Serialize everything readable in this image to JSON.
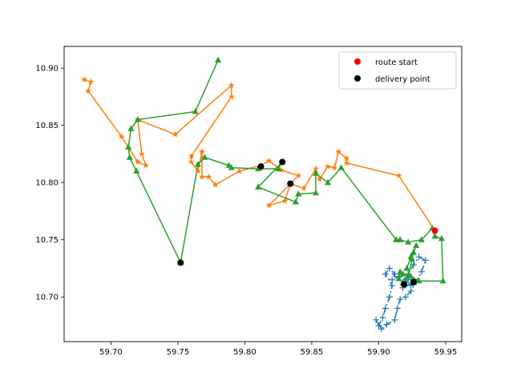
{
  "chart_data": {
    "type": "scatter",
    "title": "",
    "xlabel": "",
    "ylabel": "",
    "xlim": [
      59.665,
      59.962
    ],
    "ylim": [
      10.661,
      10.919
    ],
    "xticks": [
      59.7,
      59.75,
      59.8,
      59.85,
      59.9,
      59.95
    ],
    "yticks": [
      10.7,
      10.75,
      10.8,
      10.85,
      10.9
    ],
    "grid": false,
    "legend": {
      "placement": "top-right",
      "entries": [
        {
          "label": "route start",
          "color": "#ff0000",
          "marker": "circle"
        },
        {
          "label": "delivery point",
          "color": "#000000",
          "marker": "circle"
        }
      ]
    },
    "series": [
      {
        "color": "#1f77b4",
        "marker": "plus",
        "linestyle": "dashdot",
        "points": [
          [
            59.925,
            10.712
          ],
          [
            59.918,
            10.708
          ],
          [
            59.922,
            10.715
          ],
          [
            59.915,
            10.718
          ],
          [
            59.91,
            10.715
          ],
          [
            59.912,
            10.72
          ],
          [
            59.908,
            10.725
          ],
          [
            59.905,
            10.72
          ],
          [
            59.91,
            10.71
          ],
          [
            59.908,
            10.7
          ],
          [
            59.905,
            10.69
          ],
          [
            59.903,
            10.682
          ],
          [
            59.9,
            10.675
          ],
          [
            59.898,
            10.68
          ],
          [
            59.902,
            10.672
          ],
          [
            59.906,
            10.676
          ],
          [
            59.912,
            10.68
          ],
          [
            59.914,
            10.69
          ],
          [
            59.916,
            10.698
          ],
          [
            59.92,
            10.7
          ],
          [
            59.924,
            10.705
          ],
          [
            59.928,
            10.713
          ],
          [
            59.932,
            10.722
          ],
          [
            59.935,
            10.732
          ],
          [
            59.93,
            10.735
          ],
          [
            59.926,
            10.728
          ],
          [
            59.922,
            10.72
          ],
          [
            59.92,
            10.715
          ],
          [
            59.924,
            10.71
          ],
          [
            59.926,
            10.715
          ]
        ]
      },
      {
        "color": "#ff7f0e",
        "marker": "star",
        "linestyle": "solid",
        "points": [
          [
            59.942,
            10.758
          ],
          [
            59.915,
            10.806
          ],
          [
            59.876,
            10.817
          ],
          [
            59.876,
            10.821
          ],
          [
            59.87,
            10.827
          ],
          [
            59.867,
            10.813
          ],
          [
            59.862,
            10.814
          ],
          [
            59.856,
            10.803
          ],
          [
            59.853,
            10.812
          ],
          [
            59.844,
            10.795
          ],
          [
            59.834,
            10.799
          ],
          [
            59.83,
            10.784
          ],
          [
            59.818,
            10.78
          ],
          [
            59.84,
            10.806
          ],
          [
            59.827,
            10.811
          ],
          [
            59.818,
            10.819
          ],
          [
            59.812,
            10.815
          ],
          [
            59.796,
            10.81
          ],
          [
            59.778,
            10.798
          ],
          [
            59.773,
            10.805
          ],
          [
            59.768,
            10.805
          ],
          [
            59.768,
            10.827
          ],
          [
            59.765,
            10.81
          ],
          [
            59.76,
            10.818
          ],
          [
            59.76,
            10.823
          ],
          [
            59.79,
            10.875
          ],
          [
            59.79,
            10.885
          ],
          [
            59.748,
            10.842
          ],
          [
            59.72,
            10.855
          ],
          [
            59.723,
            10.825
          ],
          [
            59.726,
            10.815
          ],
          [
            59.72,
            10.818
          ],
          [
            59.708,
            10.84
          ],
          [
            59.683,
            10.88
          ],
          [
            59.685,
            10.888
          ],
          [
            59.68,
            10.89
          ]
        ]
      },
      {
        "color": "#2ca02c",
        "marker": "triangle",
        "linestyle": "solid",
        "points": [
          [
            59.78,
            10.907
          ],
          [
            59.763,
            10.862
          ],
          [
            59.72,
            10.855
          ],
          [
            59.715,
            10.847
          ],
          [
            59.713,
            10.831
          ],
          [
            59.714,
            10.822
          ],
          [
            59.719,
            10.81
          ],
          [
            59.752,
            10.73
          ],
          [
            59.765,
            10.816
          ],
          [
            59.77,
            10.822
          ],
          [
            59.788,
            10.815
          ],
          [
            59.79,
            10.813
          ],
          [
            59.81,
            10.812
          ],
          [
            59.825,
            10.812
          ],
          [
            59.828,
            10.818
          ],
          [
            59.81,
            10.796
          ],
          [
            59.838,
            10.783
          ],
          [
            59.84,
            10.79
          ],
          [
            59.853,
            10.791
          ],
          [
            59.853,
            10.808
          ],
          [
            59.862,
            10.8
          ],
          [
            59.872,
            10.813
          ],
          [
            59.913,
            10.75
          ],
          [
            59.916,
            10.75
          ],
          [
            59.922,
            10.748
          ],
          [
            59.932,
            10.75
          ],
          [
            59.94,
            10.76
          ],
          [
            59.942,
            10.753
          ],
          [
            59.947,
            10.751
          ],
          [
            59.948,
            10.714
          ],
          [
            59.93,
            10.714
          ],
          [
            59.924,
            10.718
          ],
          [
            59.918,
            10.72
          ],
          [
            59.916,
            10.722
          ],
          [
            59.915,
            10.716
          ],
          [
            59.918,
            10.712
          ],
          [
            59.922,
            10.718
          ],
          [
            59.925,
            10.733
          ],
          [
            59.926,
            10.739
          ],
          [
            59.928,
            10.745
          ],
          [
            59.924,
            10.735
          ],
          [
            59.921,
            10.725
          ]
        ]
      }
    ],
    "route_start": [
      [
        59.942,
        10.758
      ]
    ],
    "delivery_points": [
      [
        59.752,
        10.73
      ],
      [
        59.812,
        10.814
      ],
      [
        59.828,
        10.818
      ],
      [
        59.834,
        10.799
      ],
      [
        59.926,
        10.713
      ],
      [
        59.919,
        10.711
      ]
    ]
  }
}
